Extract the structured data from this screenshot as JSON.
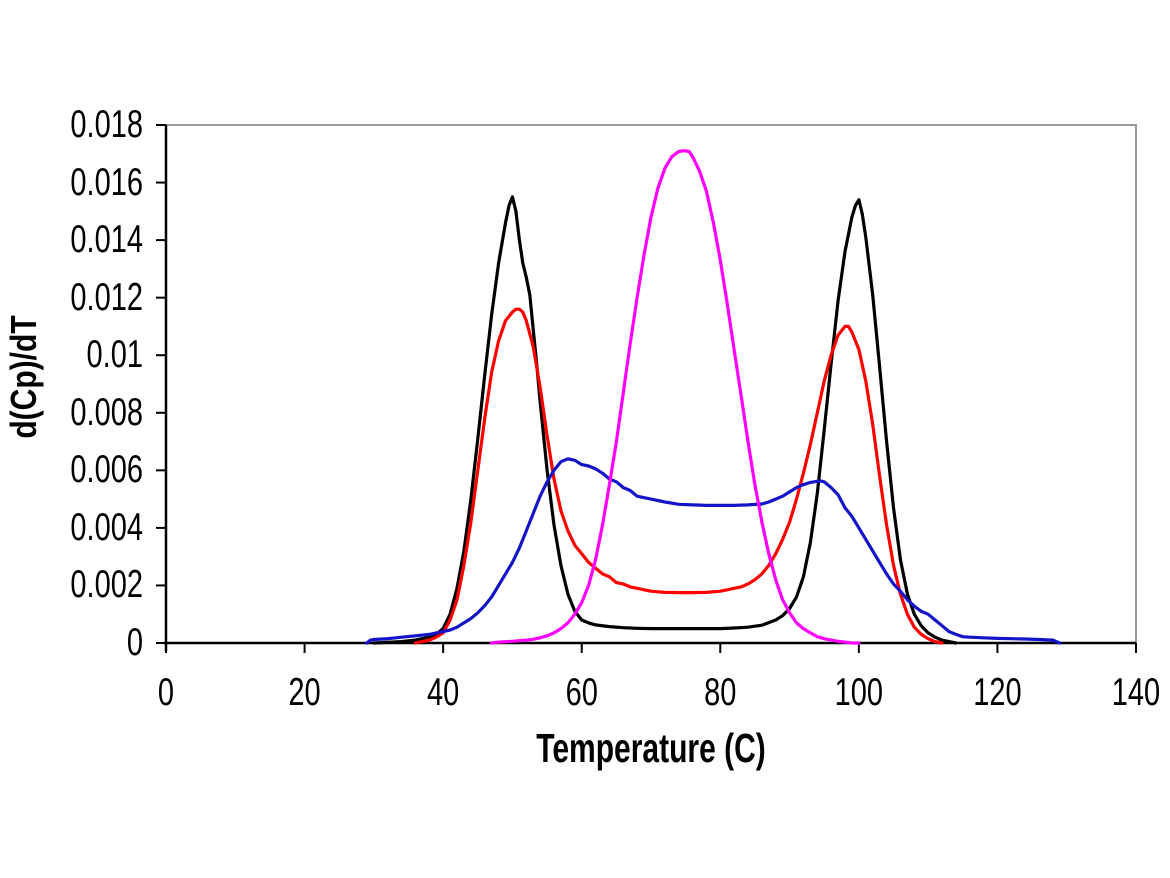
{
  "chart_data": {
    "type": "line",
    "title": "",
    "xlabel": "Temperature (C)",
    "ylabel": "d(Cp)/dT",
    "xlim": [
      0,
      140
    ],
    "ylim": [
      0,
      0.018
    ],
    "grid": false,
    "legend": "none",
    "plot_border_color": "#999999",
    "axis_color": "#000000",
    "background_color": "#ffffff",
    "xticks": [
      {
        "v": 0,
        "label": "0"
      },
      {
        "v": 20,
        "label": "20"
      },
      {
        "v": 40,
        "label": "40"
      },
      {
        "v": 60,
        "label": "60"
      },
      {
        "v": 80,
        "label": "80"
      },
      {
        "v": 100,
        "label": "100"
      },
      {
        "v": 120,
        "label": "120"
      },
      {
        "v": 140,
        "label": "140"
      }
    ],
    "yticks": [
      {
        "v": 0,
        "label": "0"
      },
      {
        "v": 0.002,
        "label": "0.002"
      },
      {
        "v": 0.004,
        "label": "0.004"
      },
      {
        "v": 0.006,
        "label": "0.006"
      },
      {
        "v": 0.008,
        "label": "0.008"
      },
      {
        "v": 0.01,
        "label": "0.01"
      },
      {
        "v": 0.012,
        "label": "0.012"
      },
      {
        "v": 0.014,
        "label": "0.014"
      },
      {
        "v": 0.016,
        "label": "0.016"
      },
      {
        "v": 0.018,
        "label": "0.018"
      }
    ],
    "series": [
      {
        "name": "black-sharp-bimodal-curve",
        "color": "#000000",
        "points": [
          [
            30,
            0
          ],
          [
            34,
            5e-05
          ],
          [
            36,
            0.0001
          ],
          [
            38,
            0.0002
          ],
          [
            39,
            0.0003
          ],
          [
            40,
            0.0005
          ],
          [
            41,
            0.001
          ],
          [
            42,
            0.0019
          ],
          [
            43,
            0.0032
          ],
          [
            44,
            0.005
          ],
          [
            45,
            0.0071
          ],
          [
            46,
            0.0093
          ],
          [
            47,
            0.0114
          ],
          [
            48,
            0.0132
          ],
          [
            49,
            0.0146
          ],
          [
            49.5,
            0.0152
          ],
          [
            50,
            0.0155
          ],
          [
            50.5,
            0.015
          ],
          [
            51,
            0.014
          ],
          [
            51.5,
            0.0132
          ],
          [
            52,
            0.0127
          ],
          [
            52.5,
            0.0121
          ],
          [
            53,
            0.0109
          ],
          [
            53.5,
            0.0097
          ],
          [
            54,
            0.0084
          ],
          [
            55,
            0.006
          ],
          [
            56,
            0.0041
          ],
          [
            57,
            0.0027
          ],
          [
            58,
            0.0017
          ],
          [
            59,
            0.0011
          ],
          [
            60,
            0.0008
          ],
          [
            61,
            0.0007
          ],
          [
            62,
            0.00063
          ],
          [
            64,
            0.00057
          ],
          [
            66,
            0.00053
          ],
          [
            68,
            0.00051
          ],
          [
            70,
            0.0005
          ],
          [
            74,
            0.0005
          ],
          [
            78,
            0.0005
          ],
          [
            80,
            0.0005
          ],
          [
            82,
            0.00052
          ],
          [
            84,
            0.00055
          ],
          [
            86,
            0.00062
          ],
          [
            88,
            0.0008
          ],
          [
            89,
            0.00095
          ],
          [
            90,
            0.0012
          ],
          [
            91,
            0.0016
          ],
          [
            92,
            0.0023
          ],
          [
            93,
            0.0035
          ],
          [
            94,
            0.0052
          ],
          [
            95,
            0.0074
          ],
          [
            96,
            0.0097
          ],
          [
            97,
            0.0119
          ],
          [
            98,
            0.0136
          ],
          [
            99,
            0.0148
          ],
          [
            99.5,
            0.0152
          ],
          [
            100,
            0.0154
          ],
          [
            100.5,
            0.0149
          ],
          [
            101,
            0.0141
          ],
          [
            102,
            0.0121
          ],
          [
            103,
            0.0096
          ],
          [
            104,
            0.007
          ],
          [
            105,
            0.0047
          ],
          [
            106,
            0.0029
          ],
          [
            107,
            0.0017
          ],
          [
            108,
            0.001
          ],
          [
            109,
            0.0006
          ],
          [
            110,
            0.00035
          ],
          [
            111,
            0.0002
          ],
          [
            112,
            0.0001
          ],
          [
            113,
            5e-05
          ],
          [
            114,
            0
          ]
        ]
      },
      {
        "name": "red-bimodal-curve",
        "color": "#ff0000",
        "points": [
          [
            36,
            0
          ],
          [
            38,
            0.0001
          ],
          [
            39,
            0.0002
          ],
          [
            40,
            0.00035
          ],
          [
            41,
            0.0008
          ],
          [
            42,
            0.0015
          ],
          [
            43,
            0.0027
          ],
          [
            44,
            0.0042
          ],
          [
            45,
            0.006
          ],
          [
            46,
            0.0078
          ],
          [
            47,
            0.0094
          ],
          [
            48,
            0.0105
          ],
          [
            49,
            0.0112
          ],
          [
            50,
            0.0115
          ],
          [
            50.5,
            0.0116
          ],
          [
            51,
            0.0116
          ],
          [
            51.5,
            0.0115
          ],
          [
            52,
            0.0112
          ],
          [
            53,
            0.0103
          ],
          [
            54,
            0.0089
          ],
          [
            55,
            0.0072
          ],
          [
            56,
            0.0057
          ],
          [
            57,
            0.0046
          ],
          [
            58,
            0.0039
          ],
          [
            59,
            0.0034
          ],
          [
            60,
            0.0031
          ],
          [
            61,
            0.0028
          ],
          [
            62,
            0.0026
          ],
          [
            63,
            0.0024
          ],
          [
            64,
            0.0023
          ],
          [
            65,
            0.0021
          ],
          [
            66,
            0.00205
          ],
          [
            67,
            0.00195
          ],
          [
            68,
            0.0019
          ],
          [
            69,
            0.00185
          ],
          [
            70,
            0.0018
          ],
          [
            71,
            0.00178
          ],
          [
            72,
            0.00176
          ],
          [
            74,
            0.00175
          ],
          [
            76,
            0.00175
          ],
          [
            78,
            0.00176
          ],
          [
            80,
            0.0018
          ],
          [
            81,
            0.00185
          ],
          [
            82,
            0.0019
          ],
          [
            83,
            0.00195
          ],
          [
            84,
            0.00205
          ],
          [
            85,
            0.0022
          ],
          [
            86,
            0.0024
          ],
          [
            87,
            0.0027
          ],
          [
            88,
            0.0031
          ],
          [
            89,
            0.0036
          ],
          [
            90,
            0.0042
          ],
          [
            91,
            0.005
          ],
          [
            92,
            0.0059
          ],
          [
            93,
            0.0069
          ],
          [
            94,
            0.008
          ],
          [
            95,
            0.0091
          ],
          [
            96,
            0.01
          ],
          [
            97,
            0.0107
          ],
          [
            98,
            0.011
          ],
          [
            98.5,
            0.011
          ],
          [
            99,
            0.0108
          ],
          [
            100,
            0.0102
          ],
          [
            101,
            0.0091
          ],
          [
            102,
            0.0076
          ],
          [
            103,
            0.0058
          ],
          [
            104,
            0.0041
          ],
          [
            105,
            0.0027
          ],
          [
            106,
            0.0017
          ],
          [
            107,
            0.001
          ],
          [
            108,
            0.00055
          ],
          [
            109,
            0.0003
          ],
          [
            110,
            0.00015
          ],
          [
            111,
            5e-05
          ],
          [
            112,
            0
          ]
        ]
      },
      {
        "name": "blue-broad-curve",
        "color": "#1414c8",
        "points": [
          [
            29,
            0
          ],
          [
            29.5,
            0.0001
          ],
          [
            30,
            0.00012
          ],
          [
            32,
            0.00015
          ],
          [
            34,
            0.0002
          ],
          [
            36,
            0.00025
          ],
          [
            38,
            0.0003
          ],
          [
            40,
            0.0004
          ],
          [
            41,
            0.00045
          ],
          [
            42,
            0.00055
          ],
          [
            43,
            0.0007
          ],
          [
            44,
            0.00085
          ],
          [
            45,
            0.00105
          ],
          [
            46,
            0.0013
          ],
          [
            47,
            0.0016
          ],
          [
            48,
            0.002
          ],
          [
            49,
            0.0024
          ],
          [
            50,
            0.0028
          ],
          [
            51,
            0.0033
          ],
          [
            52,
            0.0039
          ],
          [
            53,
            0.0045
          ],
          [
            54,
            0.0051
          ],
          [
            55,
            0.0056
          ],
          [
            56,
            0.006
          ],
          [
            57,
            0.0063
          ],
          [
            58,
            0.0064
          ],
          [
            59,
            0.00635
          ],
          [
            60,
            0.0062
          ],
          [
            61,
            0.00615
          ],
          [
            62,
            0.00605
          ],
          [
            63,
            0.0059
          ],
          [
            64,
            0.0057
          ],
          [
            65,
            0.0056
          ],
          [
            66,
            0.0054
          ],
          [
            67,
            0.0053
          ],
          [
            68,
            0.0051
          ],
          [
            69,
            0.00505
          ],
          [
            70,
            0.005
          ],
          [
            71,
            0.00495
          ],
          [
            72,
            0.0049
          ],
          [
            74,
            0.00482
          ],
          [
            76,
            0.0048
          ],
          [
            78,
            0.00478
          ],
          [
            80,
            0.00478
          ],
          [
            82,
            0.00478
          ],
          [
            84,
            0.0048
          ],
          [
            86,
            0.00483
          ],
          [
            87,
            0.0049
          ],
          [
            88,
            0.005
          ],
          [
            89,
            0.0051
          ],
          [
            90,
            0.00525
          ],
          [
            91,
            0.0054
          ],
          [
            92,
            0.0055
          ],
          [
            93,
            0.00558
          ],
          [
            94,
            0.00562
          ],
          [
            94.5,
            0.00563
          ],
          [
            95,
            0.0056
          ],
          [
            96,
            0.0054
          ],
          [
            97,
            0.00515
          ],
          [
            98,
            0.0047
          ],
          [
            99,
            0.0044
          ],
          [
            100,
            0.004
          ],
          [
            101,
            0.0036
          ],
          [
            102,
            0.0032
          ],
          [
            103,
            0.0028
          ],
          [
            104,
            0.0024
          ],
          [
            105,
            0.00205
          ],
          [
            106,
            0.0018
          ],
          [
            107,
            0.0015
          ],
          [
            108,
            0.00128
          ],
          [
            109,
            0.0011
          ],
          [
            110,
            0.001
          ],
          [
            111,
            0.0008
          ],
          [
            112,
            0.0006
          ],
          [
            113,
            0.0004
          ],
          [
            114,
            0.0003
          ],
          [
            115,
            0.00022
          ],
          [
            116,
            0.0002
          ],
          [
            118,
            0.00018
          ],
          [
            120,
            0.00016
          ],
          [
            122,
            0.00015
          ],
          [
            124,
            0.00014
          ],
          [
            126,
            0.00012
          ],
          [
            128,
            0.0001
          ],
          [
            128.5,
            5e-05
          ],
          [
            129,
            0
          ]
        ]
      },
      {
        "name": "magenta-single-peak-curve",
        "color": "#ff00ff",
        "points": [
          [
            47,
            0
          ],
          [
            48,
            3e-05
          ],
          [
            50,
            6e-05
          ],
          [
            52,
            0.0001
          ],
          [
            53,
            0.00013
          ],
          [
            54,
            0.00018
          ],
          [
            55,
            0.00025
          ],
          [
            56,
            0.00035
          ],
          [
            57,
            0.0005
          ],
          [
            58,
            0.0007
          ],
          [
            59,
            0.001
          ],
          [
            60,
            0.0014
          ],
          [
            61,
            0.002
          ],
          [
            62,
            0.0029
          ],
          [
            63,
            0.0041
          ],
          [
            64,
            0.0055
          ],
          [
            65,
            0.007
          ],
          [
            66,
            0.0087
          ],
          [
            67,
            0.0104
          ],
          [
            68,
            0.012
          ],
          [
            69,
            0.0135
          ],
          [
            70,
            0.0148
          ],
          [
            71,
            0.0158
          ],
          [
            72,
            0.0165
          ],
          [
            73,
            0.0169
          ],
          [
            74,
            0.01708
          ],
          [
            74.5,
            0.0171
          ],
          [
            75,
            0.0171
          ],
          [
            75.5,
            0.01708
          ],
          [
            76,
            0.0169
          ],
          [
            77,
            0.0164
          ],
          [
            78,
            0.0157
          ],
          [
            79,
            0.0146
          ],
          [
            80,
            0.0133
          ],
          [
            81,
            0.0118
          ],
          [
            82,
            0.0102
          ],
          [
            83,
            0.0086
          ],
          [
            84,
            0.007
          ],
          [
            85,
            0.0055
          ],
          [
            86,
            0.0042
          ],
          [
            87,
            0.0031
          ],
          [
            88,
            0.0022
          ],
          [
            89,
            0.0015
          ],
          [
            90,
            0.00105
          ],
          [
            91,
            0.0007
          ],
          [
            92,
            0.0005
          ],
          [
            93,
            0.00035
          ],
          [
            94,
            0.00022
          ],
          [
            95,
            0.00015
          ],
          [
            96,
            0.0001
          ],
          [
            97,
            6e-05
          ],
          [
            98,
            3e-05
          ],
          [
            99,
            0
          ],
          [
            100,
            0
          ]
        ]
      }
    ]
  }
}
